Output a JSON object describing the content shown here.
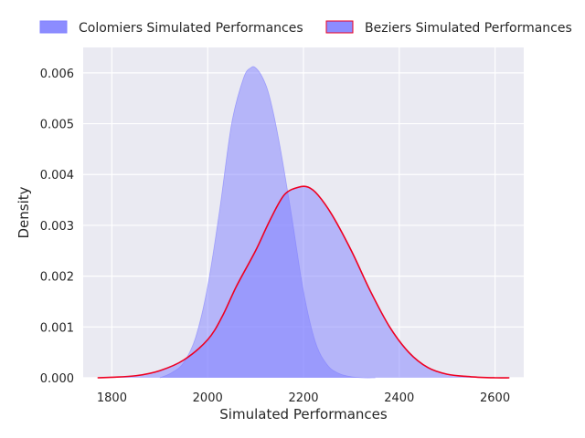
{
  "chart_data": {
    "type": "area",
    "title": "",
    "xlabel": "Simulated Performances",
    "ylabel": "Density",
    "xlim": [
      1740,
      2660
    ],
    "ylim": [
      0,
      0.0065
    ],
    "xticks": [
      1800,
      2000,
      2200,
      2400,
      2600
    ],
    "yticks": [
      0.0,
      0.001,
      0.002,
      0.003,
      0.004,
      0.005,
      0.006
    ],
    "ytick_labels": [
      "0.000",
      "0.001",
      "0.002",
      "0.003",
      "0.004",
      "0.005",
      "0.006"
    ],
    "grid": true,
    "legend_position": "top",
    "series": [
      {
        "name": "Colomiers Simulated Performances",
        "fill_color": "#8080ff",
        "edge_color": "#8080ff",
        "x": [
          1900,
          1925,
          1950,
          1975,
          2000,
          2025,
          2050,
          2075,
          2090,
          2100,
          2115,
          2130,
          2150,
          2175,
          2200,
          2225,
          2250,
          2275,
          2300,
          2325,
          2350
        ],
        "y": [
          0.0,
          0.0001,
          0.0003,
          0.0008,
          0.0018,
          0.0033,
          0.005,
          0.0059,
          0.0061,
          0.0061,
          0.0059,
          0.0055,
          0.0046,
          0.0032,
          0.0017,
          0.0007,
          0.00025,
          8e-05,
          2e-05,
          0.0,
          0.0
        ]
      },
      {
        "name": "Beziers Simulated Performances",
        "fill_color": "#8080ff",
        "edge_color": "#ee0022",
        "x": [
          1770,
          1800,
          1850,
          1900,
          1950,
          2000,
          2030,
          2060,
          2100,
          2130,
          2160,
          2190,
          2210,
          2230,
          2260,
          2300,
          2340,
          2380,
          2420,
          2460,
          2500,
          2550,
          2600,
          2630
        ],
        "y": [
          0.0,
          1e-05,
          4e-05,
          0.00014,
          0.00035,
          0.00075,
          0.0012,
          0.0018,
          0.0025,
          0.0031,
          0.0036,
          0.00375,
          0.00375,
          0.0036,
          0.0032,
          0.0025,
          0.0017,
          0.001,
          0.0005,
          0.0002,
          7e-05,
          2e-05,
          0.0,
          0.0
        ]
      }
    ]
  }
}
